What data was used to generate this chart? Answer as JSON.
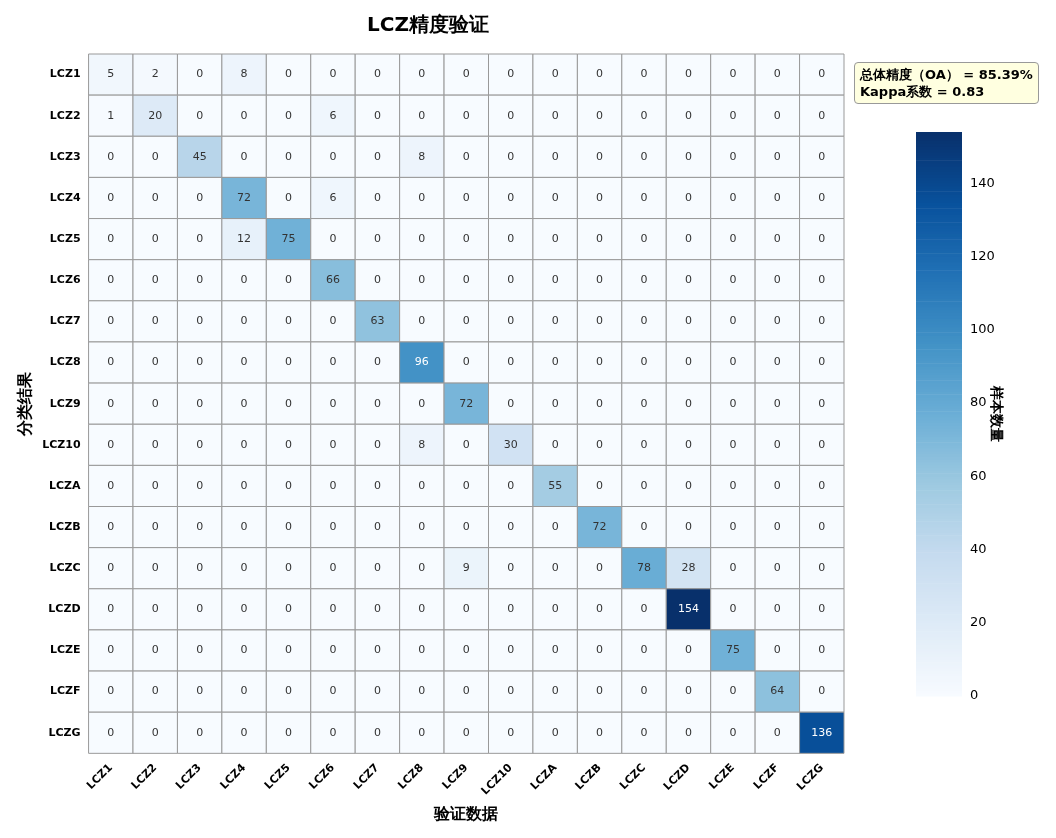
{
  "chart_data": {
    "type": "heatmap",
    "title": "LCZ精度验证",
    "xlabel": "验证数据",
    "ylabel": "分类结果",
    "clabel": "样本数量",
    "categories": [
      "LCZ1",
      "LCZ2",
      "LCZ3",
      "LCZ4",
      "LCZ5",
      "LCZ6",
      "LCZ7",
      "LCZ8",
      "LCZ9",
      "LCZ10",
      "LCZA",
      "LCZB",
      "LCZC",
      "LCZD",
      "LCZE",
      "LCZF",
      "LCZG"
    ],
    "y_categories": [
      "LCZ1",
      "LCZ2",
      "LCZ3",
      "LCZ4",
      "LCZ5",
      "LCZ6",
      "LCZ7",
      "LCZ8",
      "LCZ9",
      "LCZ10",
      "LCZA",
      "LCZB",
      "LCZC",
      "LCZD",
      "LCZE",
      "LCZF",
      "LCZG"
    ],
    "cells": [
      [
        5,
        2,
        0,
        8,
        0,
        0,
        0,
        0,
        0,
        0,
        0,
        0,
        0,
        0,
        0,
        0,
        0
      ],
      [
        1,
        20,
        0,
        0,
        0,
        6,
        0,
        0,
        0,
        0,
        0,
        0,
        0,
        0,
        0,
        0,
        0
      ],
      [
        0,
        0,
        45,
        0,
        0,
        0,
        0,
        8,
        0,
        0,
        0,
        0,
        0,
        0,
        0,
        0,
        0
      ],
      [
        0,
        0,
        0,
        72,
        0,
        6,
        0,
        0,
        0,
        0,
        0,
        0,
        0,
        0,
        0,
        0,
        0
      ],
      [
        0,
        0,
        0,
        12,
        75,
        0,
        0,
        0,
        0,
        0,
        0,
        0,
        0,
        0,
        0,
        0,
        0
      ],
      [
        0,
        0,
        0,
        0,
        0,
        66,
        0,
        0,
        0,
        0,
        0,
        0,
        0,
        0,
        0,
        0,
        0
      ],
      [
        0,
        0,
        0,
        0,
        0,
        0,
        63,
        0,
        0,
        0,
        0,
        0,
        0,
        0,
        0,
        0,
        0
      ],
      [
        0,
        0,
        0,
        0,
        0,
        0,
        0,
        96,
        0,
        0,
        0,
        0,
        0,
        0,
        0,
        0,
        0
      ],
      [
        0,
        0,
        0,
        0,
        0,
        0,
        0,
        0,
        72,
        0,
        0,
        0,
        0,
        0,
        0,
        0,
        0
      ],
      [
        0,
        0,
        0,
        0,
        0,
        0,
        0,
        8,
        0,
        30,
        0,
        0,
        0,
        0,
        0,
        0,
        0
      ],
      [
        0,
        0,
        0,
        0,
        0,
        0,
        0,
        0,
        0,
        0,
        55,
        0,
        0,
        0,
        0,
        0,
        0
      ],
      [
        0,
        0,
        0,
        0,
        0,
        0,
        0,
        0,
        0,
        0,
        0,
        72,
        0,
        0,
        0,
        0,
        0
      ],
      [
        0,
        0,
        0,
        0,
        0,
        0,
        0,
        0,
        9,
        0,
        0,
        0,
        78,
        28,
        0,
        0,
        0
      ],
      [
        0,
        0,
        0,
        0,
        0,
        0,
        0,
        0,
        0,
        0,
        0,
        0,
        0,
        154,
        0,
        0,
        0
      ],
      [
        0,
        0,
        0,
        0,
        0,
        0,
        0,
        0,
        0,
        0,
        0,
        0,
        0,
        0,
        75,
        0,
        0
      ],
      [
        0,
        0,
        0,
        0,
        0,
        0,
        0,
        0,
        0,
        0,
        0,
        0,
        0,
        0,
        0,
        64,
        0
      ],
      [
        0,
        0,
        0,
        0,
        0,
        0,
        0,
        0,
        0,
        0,
        0,
        0,
        0,
        0,
        0,
        0,
        136
      ]
    ],
    "clim": [
      0,
      154
    ],
    "cticks": [
      0,
      20,
      40,
      60,
      80,
      100,
      120,
      140
    ],
    "data_labels": true,
    "annotations": [
      "总体精度（OA） = 85.39%",
      "Kappa系数 = 0.83"
    ]
  }
}
